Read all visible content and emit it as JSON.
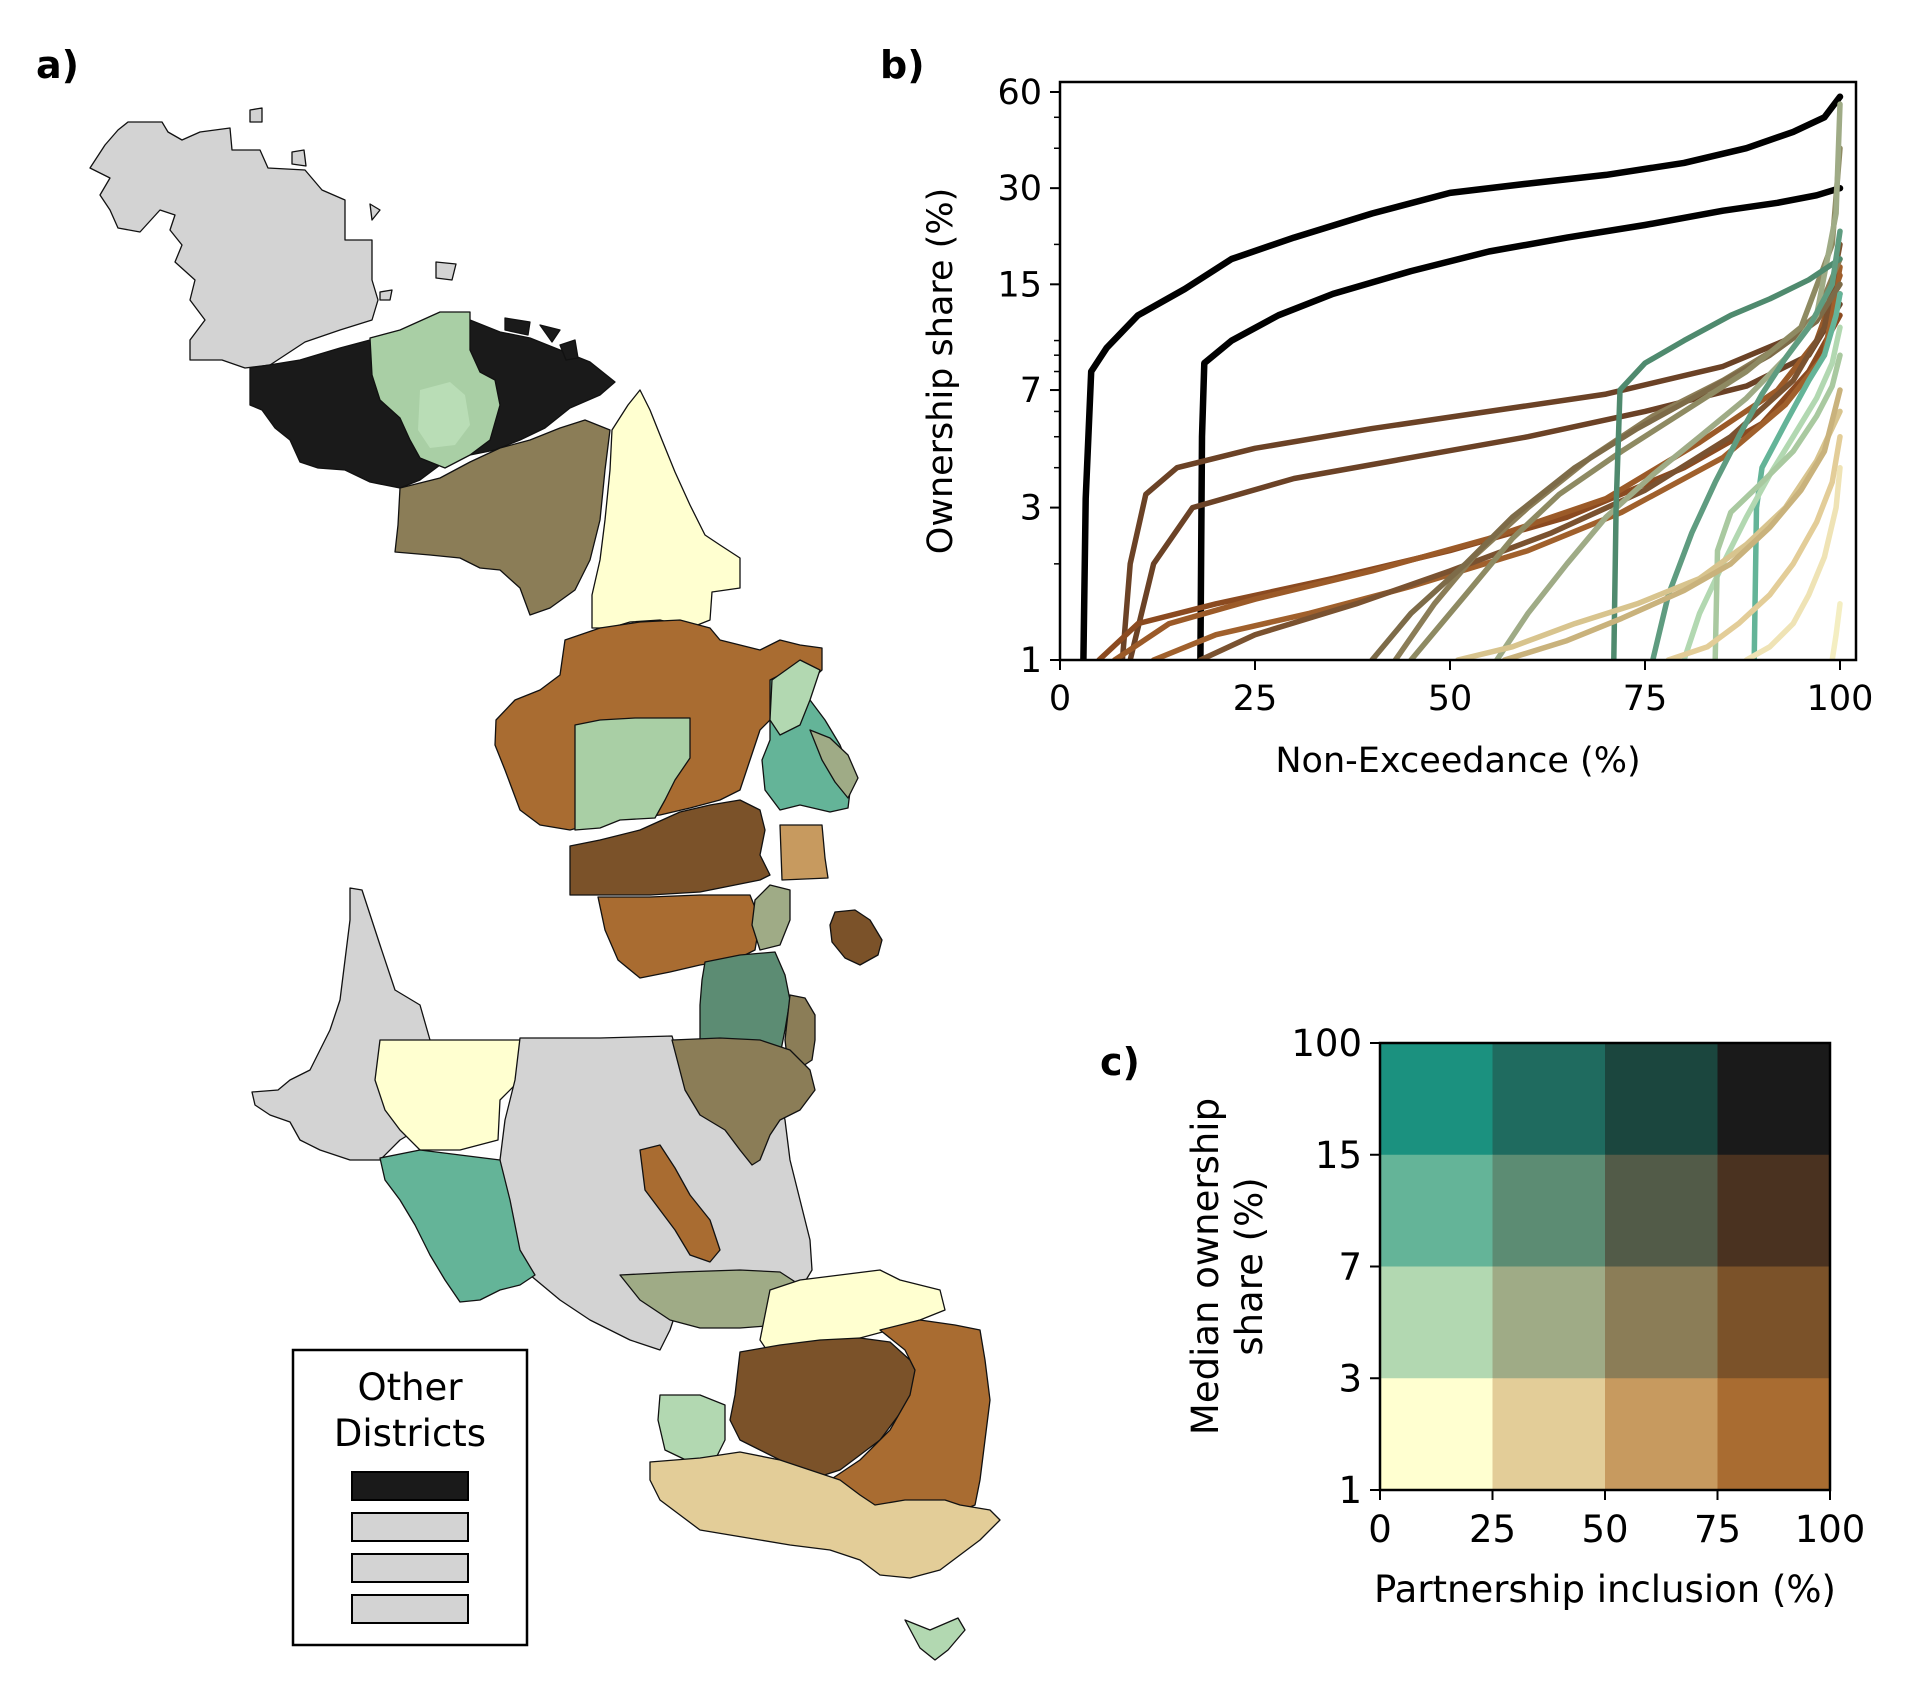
{
  "panels": {
    "a_label": "a)",
    "b_label": "b)",
    "c_label": "c)"
  },
  "legend": {
    "title_line1": "Other",
    "title_line2": "Districts",
    "swatches": [
      "#1a1a1a",
      "#d3d3d3",
      "#d3d3d3",
      "#d3d3d3"
    ]
  },
  "palette": {
    "black": "#1a1a1a",
    "grey": "#d3d3d3",
    "cream": "#ffffd0",
    "tan": "#e3cd98",
    "lightbrown": "#c79a5f",
    "orangebrown": "#a96c31",
    "darkbrown": "#7b5229",
    "olive": "#8b7d57",
    "sage": "#9fab86",
    "mint": "#b2d8b1",
    "teal": "#64b498",
    "greenteal": "#5c8c73"
  },
  "chart_data": [
    {
      "type": "line",
      "panel": "b",
      "xlabel": "Non-Exceedance (%)",
      "ylabel": "Ownership share (%)",
      "xlim": [
        0,
        100
      ],
      "ylim": [
        1,
        60
      ],
      "yscale": "log",
      "xticks": [
        "0",
        "25",
        "50",
        "75",
        "100"
      ],
      "yticks": [
        "1",
        "3",
        "7",
        "15",
        "30",
        "60"
      ],
      "series": [
        {
          "color": "#000000",
          "width": 5,
          "points": [
            [
              3,
              1
            ],
            [
              3.3,
              3.2
            ],
            [
              4,
              8
            ],
            [
              6,
              9.5
            ],
            [
              10,
              12
            ],
            [
              16,
              14.5
            ],
            [
              22,
              18
            ],
            [
              30,
              21
            ],
            [
              40,
              25
            ],
            [
              50,
              29
            ],
            [
              60,
              31
            ],
            [
              70,
              33
            ],
            [
              80,
              36
            ],
            [
              88,
              40
            ],
            [
              94,
              45
            ],
            [
              98,
              50
            ],
            [
              100,
              58
            ]
          ]
        },
        {
          "color": "#000000",
          "width": 5,
          "points": [
            [
              18,
              1
            ],
            [
              18.2,
              5
            ],
            [
              18.5,
              8.5
            ],
            [
              22,
              10
            ],
            [
              28,
              12
            ],
            [
              35,
              14
            ],
            [
              45,
              16.5
            ],
            [
              55,
              19
            ],
            [
              65,
              21
            ],
            [
              75,
              23
            ],
            [
              85,
              25.5
            ],
            [
              92,
              27
            ],
            [
              97,
              28.5
            ],
            [
              100,
              30
            ]
          ]
        },
        {
          "color": "#6b4226",
          "width": 4,
          "points": [
            [
              8,
              1
            ],
            [
              9,
              2
            ],
            [
              11,
              3.3
            ],
            [
              15,
              4
            ],
            [
              25,
              4.6
            ],
            [
              40,
              5.3
            ],
            [
              55,
              6
            ],
            [
              70,
              6.8
            ],
            [
              85,
              8.3
            ],
            [
              95,
              10.5
            ],
            [
              100,
              14
            ]
          ]
        },
        {
          "color": "#6b4226",
          "width": 4,
          "points": [
            [
              9,
              1
            ],
            [
              12,
              2
            ],
            [
              17,
              3
            ],
            [
              30,
              3.7
            ],
            [
              45,
              4.3
            ],
            [
              60,
              5
            ],
            [
              75,
              6
            ],
            [
              88,
              7.2
            ],
            [
              96,
              9
            ],
            [
              100,
              13
            ]
          ]
        },
        {
          "color": "#8b4a20",
          "width": 4,
          "points": [
            [
              5,
              1
            ],
            [
              10,
              1.3
            ],
            [
              20,
              1.5
            ],
            [
              35,
              1.8
            ],
            [
              50,
              2.2
            ],
            [
              65,
              2.8
            ],
            [
              80,
              4
            ],
            [
              90,
              5.5
            ],
            [
              96,
              8
            ],
            [
              100,
              12
            ]
          ]
        },
        {
          "color": "#9b5a28",
          "width": 4,
          "points": [
            [
              7,
              1
            ],
            [
              14,
              1.3
            ],
            [
              25,
              1.55
            ],
            [
              40,
              1.9
            ],
            [
              55,
              2.4
            ],
            [
              70,
              3.2
            ],
            [
              82,
              4.8
            ],
            [
              92,
              7
            ],
            [
              97,
              10
            ],
            [
              100,
              16
            ]
          ]
        },
        {
          "color": "#a0602c",
          "width": 4,
          "points": [
            [
              12,
              1
            ],
            [
              20,
              1.2
            ],
            [
              32,
              1.4
            ],
            [
              45,
              1.7
            ],
            [
              60,
              2.2
            ],
            [
              72,
              2.9
            ],
            [
              85,
              4.3
            ],
            [
              93,
              6.3
            ],
            [
              98,
              9
            ],
            [
              100,
              17
            ]
          ]
        },
        {
          "color": "#7a5230",
          "width": 4,
          "points": [
            [
              18,
              1
            ],
            [
              25,
              1.2
            ],
            [
              38,
              1.5
            ],
            [
              50,
              1.9
            ],
            [
              63,
              2.5
            ],
            [
              75,
              3.4
            ],
            [
              86,
              5
            ],
            [
              94,
              7.5
            ],
            [
              98,
              11
            ],
            [
              100,
              20
            ]
          ]
        },
        {
          "color": "#8b7d57",
          "width": 4,
          "points": [
            [
              43,
              1
            ],
            [
              48,
              1.5
            ],
            [
              53,
              2.1
            ],
            [
              60,
              3
            ],
            [
              68,
              4.3
            ],
            [
              76,
              5.8
            ],
            [
              85,
              7.5
            ],
            [
              92,
              9.5
            ],
            [
              97,
              12
            ],
            [
              100,
              18
            ]
          ]
        },
        {
          "color": "#7d6b48",
          "width": 4,
          "points": [
            [
              40,
              1
            ],
            [
              45,
              1.4
            ],
            [
              52,
              2
            ],
            [
              58,
              2.8
            ],
            [
              66,
              4
            ],
            [
              74,
              5.3
            ],
            [
              83,
              7
            ],
            [
              91,
              9
            ],
            [
              97,
              11.5
            ],
            [
              100,
              15
            ]
          ]
        },
        {
          "color": "#8e8a62",
          "width": 4,
          "points": [
            [
              45,
              1
            ],
            [
              52,
              1.6
            ],
            [
              58,
              2.4
            ],
            [
              64,
              3.3
            ],
            [
              72,
              4.5
            ],
            [
              80,
              6
            ],
            [
              88,
              8
            ],
            [
              95,
              11
            ],
            [
              99,
              20
            ],
            [
              100,
              40
            ]
          ]
        },
        {
          "color": "#9fab86",
          "width": 4,
          "points": [
            [
              56,
              1
            ],
            [
              60,
              1.4
            ],
            [
              65,
              2
            ],
            [
              70,
              2.8
            ],
            [
              76,
              3.8
            ],
            [
              82,
              5
            ],
            [
              88,
              6.6
            ],
            [
              93,
              8.8
            ],
            [
              97,
              12
            ],
            [
              99.5,
              25
            ],
            [
              100,
              55
            ]
          ]
        },
        {
          "color": "#4f8a6e",
          "width": 4,
          "points": [
            [
              71,
              1
            ],
            [
              71.3,
              3
            ],
            [
              71.8,
              7
            ],
            [
              75,
              8.5
            ],
            [
              80,
              10
            ],
            [
              86,
              12
            ],
            [
              91,
              13.5
            ],
            [
              96,
              15.5
            ],
            [
              100,
              18
            ]
          ]
        },
        {
          "color": "#5f9c80",
          "width": 4,
          "points": [
            [
              76,
              1
            ],
            [
              78,
              1.6
            ],
            [
              81,
              2.5
            ],
            [
              84,
              3.6
            ],
            [
              87,
              5
            ],
            [
              90,
              6.8
            ],
            [
              93,
              8.8
            ],
            [
              96,
              11
            ],
            [
              99,
              15
            ],
            [
              100,
              22
            ]
          ]
        },
        {
          "color": "#64b498",
          "width": 4,
          "points": [
            [
              89,
              1
            ],
            [
              89.3,
              3
            ],
            [
              90,
              4
            ],
            [
              93,
              5.5
            ],
            [
              96,
              7.5
            ],
            [
              98,
              9
            ],
            [
              99.5,
              12
            ],
            [
              100,
              14
            ]
          ]
        },
        {
          "color": "#b2d8b1",
          "width": 4,
          "points": [
            [
              80,
              1
            ],
            [
              82,
              1.4
            ],
            [
              85,
              2
            ],
            [
              88,
              2.8
            ],
            [
              91,
              3.8
            ],
            [
              94,
              5
            ],
            [
              97,
              6.6
            ],
            [
              99,
              8.5
            ],
            [
              100,
              11
            ]
          ]
        },
        {
          "color": "#a9c9a0",
          "width": 4,
          "points": [
            [
              84,
              1
            ],
            [
              84.3,
              2.2
            ],
            [
              86,
              2.9
            ],
            [
              90,
              3.6
            ],
            [
              94,
              4.5
            ],
            [
              97,
              5.8
            ],
            [
              99,
              7.2
            ],
            [
              100,
              9
            ]
          ]
        },
        {
          "color": "#d8c48e",
          "width": 4,
          "points": [
            [
              51,
              1
            ],
            [
              58,
              1.1
            ],
            [
              66,
              1.3
            ],
            [
              74,
              1.5
            ],
            [
              82,
              1.8
            ],
            [
              88,
              2.3
            ],
            [
              93,
              3
            ],
            [
              97,
              4.2
            ],
            [
              100,
              6
            ]
          ]
        },
        {
          "color": "#c9b27c",
          "width": 4,
          "points": [
            [
              57,
              1
            ],
            [
              65,
              1.15
            ],
            [
              72,
              1.35
            ],
            [
              80,
              1.65
            ],
            [
              86,
              2
            ],
            [
              91,
              2.6
            ],
            [
              95,
              3.4
            ],
            [
              98,
              4.5
            ],
            [
              100,
              7
            ]
          ]
        },
        {
          "color": "#e3cd98",
          "width": 4,
          "points": [
            [
              78,
              1
            ],
            [
              83,
              1.1
            ],
            [
              87,
              1.3
            ],
            [
              91,
              1.6
            ],
            [
              94,
              2
            ],
            [
              97,
              2.7
            ],
            [
              99,
              3.6
            ],
            [
              100,
              5
            ]
          ]
        },
        {
          "color": "#efe3b5",
          "width": 4,
          "points": [
            [
              88,
              1
            ],
            [
              91,
              1.1
            ],
            [
              94,
              1.3
            ],
            [
              96,
              1.6
            ],
            [
              98,
              2.1
            ],
            [
              99.5,
              3
            ],
            [
              100,
              4
            ]
          ]
        },
        {
          "color": "#f4eec2",
          "width": 4,
          "points": [
            [
              99,
              1
            ],
            [
              99.5,
              1.2
            ],
            [
              100,
              1.5
            ]
          ]
        }
      ]
    },
    {
      "type": "heatmap",
      "panel": "c",
      "xlabel": "Partnership inclusion (%)",
      "ylabel_line1": "Median ownership",
      "ylabel_line2": "share (%)",
      "xticks": [
        "0",
        "25",
        "50",
        "75",
        "100"
      ],
      "yticks": [
        "1",
        "3",
        "7",
        "15",
        "100"
      ],
      "rows_top_to_bottom": [
        [
          "#1b917f",
          "#1f6b5f",
          "#1b463e",
          "#1a1a1a"
        ],
        [
          "#64b498",
          "#5c8c73",
          "#525b48",
          "#4a3220"
        ],
        [
          "#b2d8b1",
          "#9fab86",
          "#8b7d57",
          "#7b5229"
        ],
        [
          "#ffffd0",
          "#e3cd98",
          "#c79a5f",
          "#a96c31"
        ]
      ]
    }
  ]
}
